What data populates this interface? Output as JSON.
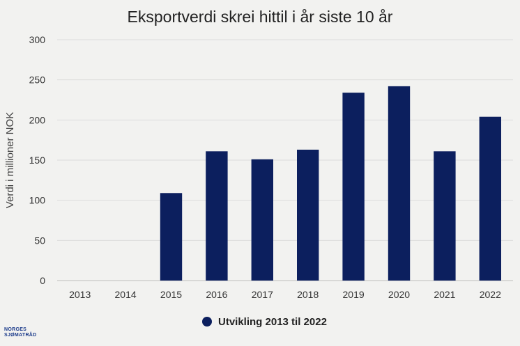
{
  "chart_data": {
    "type": "bar",
    "title": "Eksportverdi skrei hittil i år siste 10 år",
    "xlabel": "",
    "ylabel": "Verdi i millioner NOK",
    "categories": [
      "2013",
      "2014",
      "2015",
      "2016",
      "2017",
      "2018",
      "2019",
      "2020",
      "2021",
      "2022"
    ],
    "series": [
      {
        "name": "Utvikling 2013 til 2022",
        "values": [
          0,
          0,
          109,
          161,
          151,
          163,
          234,
          242,
          161,
          204
        ],
        "color": "#0c1f5e"
      }
    ],
    "ylim": [
      0,
      300
    ],
    "yticks": [
      "0",
      "50",
      "100",
      "150",
      "200",
      "250",
      "300"
    ],
    "grid": true,
    "legend_position": "bottom"
  },
  "logo": {
    "line1": "NORGES",
    "line2": "SJØMATRÅD"
  }
}
